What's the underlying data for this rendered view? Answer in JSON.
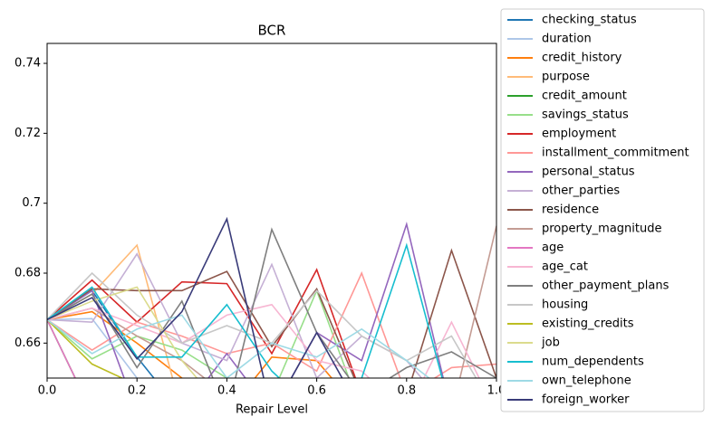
{
  "chart_data": {
    "type": "line",
    "title": "BCR",
    "xlabel": "Repair Level",
    "x": [
      0,
      0.1,
      0.2,
      0.3,
      0.4,
      0.5,
      0.6,
      0.7,
      0.8,
      0.9,
      1.0
    ],
    "xlim": [
      0,
      1
    ],
    "xticks": [
      {
        "value": 0,
        "label": "0.0"
      },
      {
        "value": 0.2,
        "label": "0.2"
      },
      {
        "value": 0.4,
        "label": "0.4"
      },
      {
        "value": 0.6,
        "label": "0.6"
      },
      {
        "value": 0.8,
        "label": "0.8"
      },
      {
        "value": 1.0,
        "label": "1.0"
      }
    ],
    "ylim": [
      0.65,
      0.7457
    ],
    "yticks": [
      0.66,
      0.68,
      0.7,
      0.72,
      0.74
    ],
    "grid": false,
    "legend": "outside right",
    "series": [
      {
        "name": "checking_status",
        "color": "#1f77b4",
        "values": [
          0.6667,
          0.675,
          0.656,
          0.64,
          0.64,
          0.64,
          0.64,
          0.64,
          0.64,
          0.64,
          0.64
        ]
      },
      {
        "name": "duration",
        "color": "#aec7e8",
        "values": [
          0.6667,
          0.667,
          0.65,
          0.64,
          0.64,
          0.64,
          0.64,
          0.64,
          0.64,
          0.64,
          0.64
        ]
      },
      {
        "name": "credit_history",
        "color": "#ff7f0e",
        "values": [
          0.6667,
          0.669,
          0.66,
          0.65,
          0.64,
          0.656,
          0.655,
          0.64,
          0.64,
          0.64,
          0.64
        ]
      },
      {
        "name": "purpose",
        "color": "#ffbb78",
        "values": [
          0.6667,
          0.674,
          0.688,
          0.64,
          0.64,
          0.64,
          0.64,
          0.64,
          0.64,
          0.64,
          0.64
        ]
      },
      {
        "name": "credit_amount",
        "color": "#2ca02c",
        "values": [
          0.6667,
          0.64,
          0.64,
          0.64,
          0.64,
          0.64,
          0.64,
          0.64,
          0.64,
          0.64,
          0.64
        ]
      },
      {
        "name": "savings_status",
        "color": "#98df8a",
        "values": [
          0.6667,
          0.6555,
          0.662,
          0.658,
          0.65,
          0.645,
          0.675,
          0.64,
          0.64,
          0.64,
          0.64
        ]
      },
      {
        "name": "employment",
        "color": "#d62728",
        "values": [
          0.6667,
          0.678,
          0.666,
          0.6775,
          0.677,
          0.657,
          0.681,
          0.645,
          0.64,
          0.64,
          0.64
        ]
      },
      {
        "name": "installment_commitment",
        "color": "#ff9896",
        "values": [
          0.6667,
          0.658,
          0.666,
          0.662,
          0.657,
          0.66,
          0.652,
          0.68,
          0.645,
          0.653,
          0.654
        ]
      },
      {
        "name": "personal_status",
        "color": "#9467bd",
        "values": [
          0.6667,
          0.675,
          0.64,
          0.64,
          0.657,
          0.64,
          0.663,
          0.655,
          0.694,
          0.64,
          0.64
        ]
      },
      {
        "name": "other_parties",
        "color": "#c5b0d5",
        "values": [
          0.6667,
          0.666,
          0.6855,
          0.66,
          0.655,
          0.6825,
          0.65,
          0.662,
          0.655,
          0.64,
          0.64
        ]
      },
      {
        "name": "residence",
        "color": "#8c564b",
        "values": [
          0.6667,
          0.6755,
          0.675,
          0.675,
          0.6805,
          0.659,
          0.6755,
          0.645,
          0.645,
          0.6865,
          0.65
        ]
      },
      {
        "name": "property_magnitude",
        "color": "#c49c94",
        "values": [
          0.6667,
          0.67,
          0.662,
          0.655,
          0.645,
          0.64,
          0.64,
          0.64,
          0.64,
          0.64,
          0.6935
        ]
      },
      {
        "name": "age",
        "color": "#e377c2",
        "values": [
          0.6667,
          0.64,
          0.64,
          0.64,
          0.64,
          0.64,
          0.64,
          0.64,
          0.64,
          0.64,
          0.64
        ]
      },
      {
        "name": "age_cat",
        "color": "#f7b6d2",
        "values": [
          0.6667,
          0.67,
          0.665,
          0.66,
          0.668,
          0.671,
          0.655,
          0.652,
          0.64,
          0.666,
          0.64
        ]
      },
      {
        "name": "other_payment_plans",
        "color": "#7f7f7f",
        "values": [
          0.6667,
          0.674,
          0.653,
          0.672,
          0.64,
          0.6925,
          0.663,
          0.645,
          0.653,
          0.6575,
          0.65
        ]
      },
      {
        "name": "housing",
        "color": "#c7c7c7",
        "values": [
          0.6667,
          0.68,
          0.668,
          0.66,
          0.665,
          0.66,
          0.675,
          0.662,
          0.655,
          0.662,
          0.64
        ]
      },
      {
        "name": "existing_credits",
        "color": "#bcbd22",
        "values": [
          0.6667,
          0.654,
          0.648,
          0.64,
          0.64,
          0.64,
          0.64,
          0.64,
          0.64,
          0.64,
          0.64
        ]
      },
      {
        "name": "job",
        "color": "#dbdb8d",
        "values": [
          0.6667,
          0.672,
          0.676,
          0.655,
          0.64,
          0.64,
          0.64,
          0.64,
          0.64,
          0.64,
          0.64
        ]
      },
      {
        "name": "num_dependents",
        "color": "#17becf",
        "values": [
          0.6667,
          0.676,
          0.656,
          0.656,
          0.671,
          0.652,
          0.64,
          0.65,
          0.688,
          0.64,
          0.64
        ]
      },
      {
        "name": "own_telephone",
        "color": "#9edae5",
        "values": [
          0.6667,
          0.657,
          0.664,
          0.668,
          0.65,
          0.66,
          0.656,
          0.664,
          0.655,
          0.645,
          0.64
        ]
      },
      {
        "name": "foreign_worker",
        "color": "#393b79",
        "values": [
          0.6667,
          0.673,
          0.6555,
          0.669,
          0.6955,
          0.64,
          0.663,
          0.64,
          0.64,
          0.64,
          0.64
        ]
      }
    ]
  }
}
